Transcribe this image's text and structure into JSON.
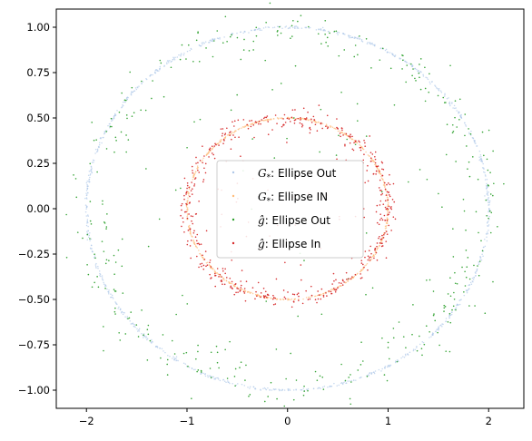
{
  "chart_data": {
    "type": "scatter",
    "title": "",
    "xlabel": "",
    "ylabel": "",
    "xlim": [
      -2.3,
      2.35
    ],
    "ylim": [
      -1.1,
      1.1
    ],
    "x_ticks": [
      -2,
      -1,
      0,
      1,
      2
    ],
    "y_ticks": [
      1.0,
      0.75,
      0.5,
      0.25,
      0.0,
      -0.25,
      -0.5,
      -0.75,
      -1.0
    ],
    "x_tick_labels": [
      "−2",
      "−1",
      "0",
      "1",
      "2"
    ],
    "y_tick_labels": [
      "1.00",
      "0.75",
      "0.50",
      "0.25",
      "0.00",
      "−0.25",
      "−0.50",
      "−0.75",
      "−1.00"
    ],
    "grid": false,
    "legend_position": "center",
    "series": [
      {
        "name": "Ellipse Out",
        "name_prefix": "G",
        "name_sub": "*",
        "name_sep": ": ",
        "color": "#aec7e8",
        "shape": "ellipse",
        "center": [
          0,
          0
        ],
        "semi_axes": [
          2.0,
          1.0
        ],
        "n_points": 900,
        "spread": 0.004
      },
      {
        "name": "Ellipse IN",
        "name_prefix": "G",
        "name_sub": "*",
        "name_sep": ": ",
        "color": "#ffbb78",
        "shape": "ellipse",
        "center": [
          0,
          0
        ],
        "semi_axes": [
          1.0,
          0.5
        ],
        "n_points": 600,
        "spread": 0.004
      },
      {
        "name": "Ellipse Out",
        "name_prefix": "ĝ",
        "name_sub": "",
        "name_sep": ": ",
        "color": "#2ca02c",
        "shape": "ellipse",
        "center": [
          0,
          0
        ],
        "semi_axes": [
          1.97,
          0.98
        ],
        "n_points": 420,
        "spread": 0.06,
        "interior_fraction": 0.18
      },
      {
        "name": "Ellipse In",
        "name_prefix": "ĝ",
        "name_sub": "",
        "name_sep": ": ",
        "color": "#d62728",
        "shape": "ellipse",
        "center": [
          0,
          0
        ],
        "semi_axes": [
          1.0,
          0.5
        ],
        "n_points": 520,
        "spread": 0.05,
        "interior_fraction": 0.12
      }
    ]
  }
}
